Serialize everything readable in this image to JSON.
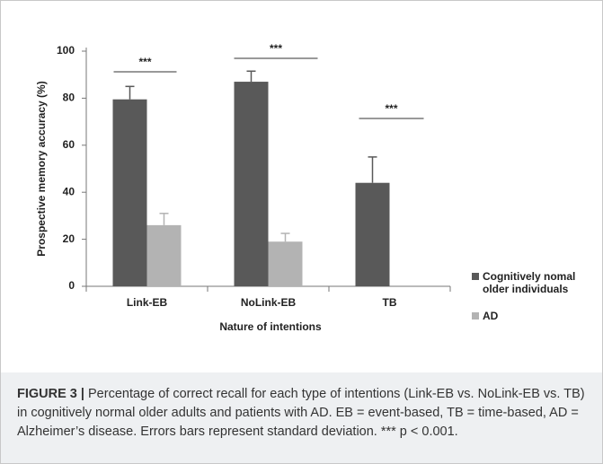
{
  "chart_data": {
    "type": "bar",
    "categories": [
      "Link-EB",
      "NoLink-EB",
      "TB"
    ],
    "x_label": "Nature of intentions",
    "y_label": "Prospective memory accuracy (%)",
    "series": [
      {
        "name": "Cognitively nomal older individuals",
        "color": "#595959",
        "values": [
          79.5,
          87,
          44
        ],
        "errors": [
          5.5,
          4.5,
          11
        ]
      },
      {
        "name": "AD",
        "color": "#b3b3b3",
        "values": [
          26,
          19,
          null
        ],
        "errors": [
          5,
          3.5,
          null
        ]
      }
    ],
    "ylim": [
      0,
      100
    ],
    "yticks": [
      0,
      20,
      40,
      60,
      80,
      100
    ],
    "annotations": [
      "***",
      "***",
      "***"
    ]
  },
  "caption": {
    "label": "FIGURE 3 |",
    "text": "Percentage of correct recall for each type of intentions (Link-EB vs. NoLink-EB vs. TB) in cognitively normal older adults and patients with AD. EB = event-based, TB = time-based, AD = Alzheimer’s disease. Errors bars represent standard deviation. *** p < 0.001."
  }
}
